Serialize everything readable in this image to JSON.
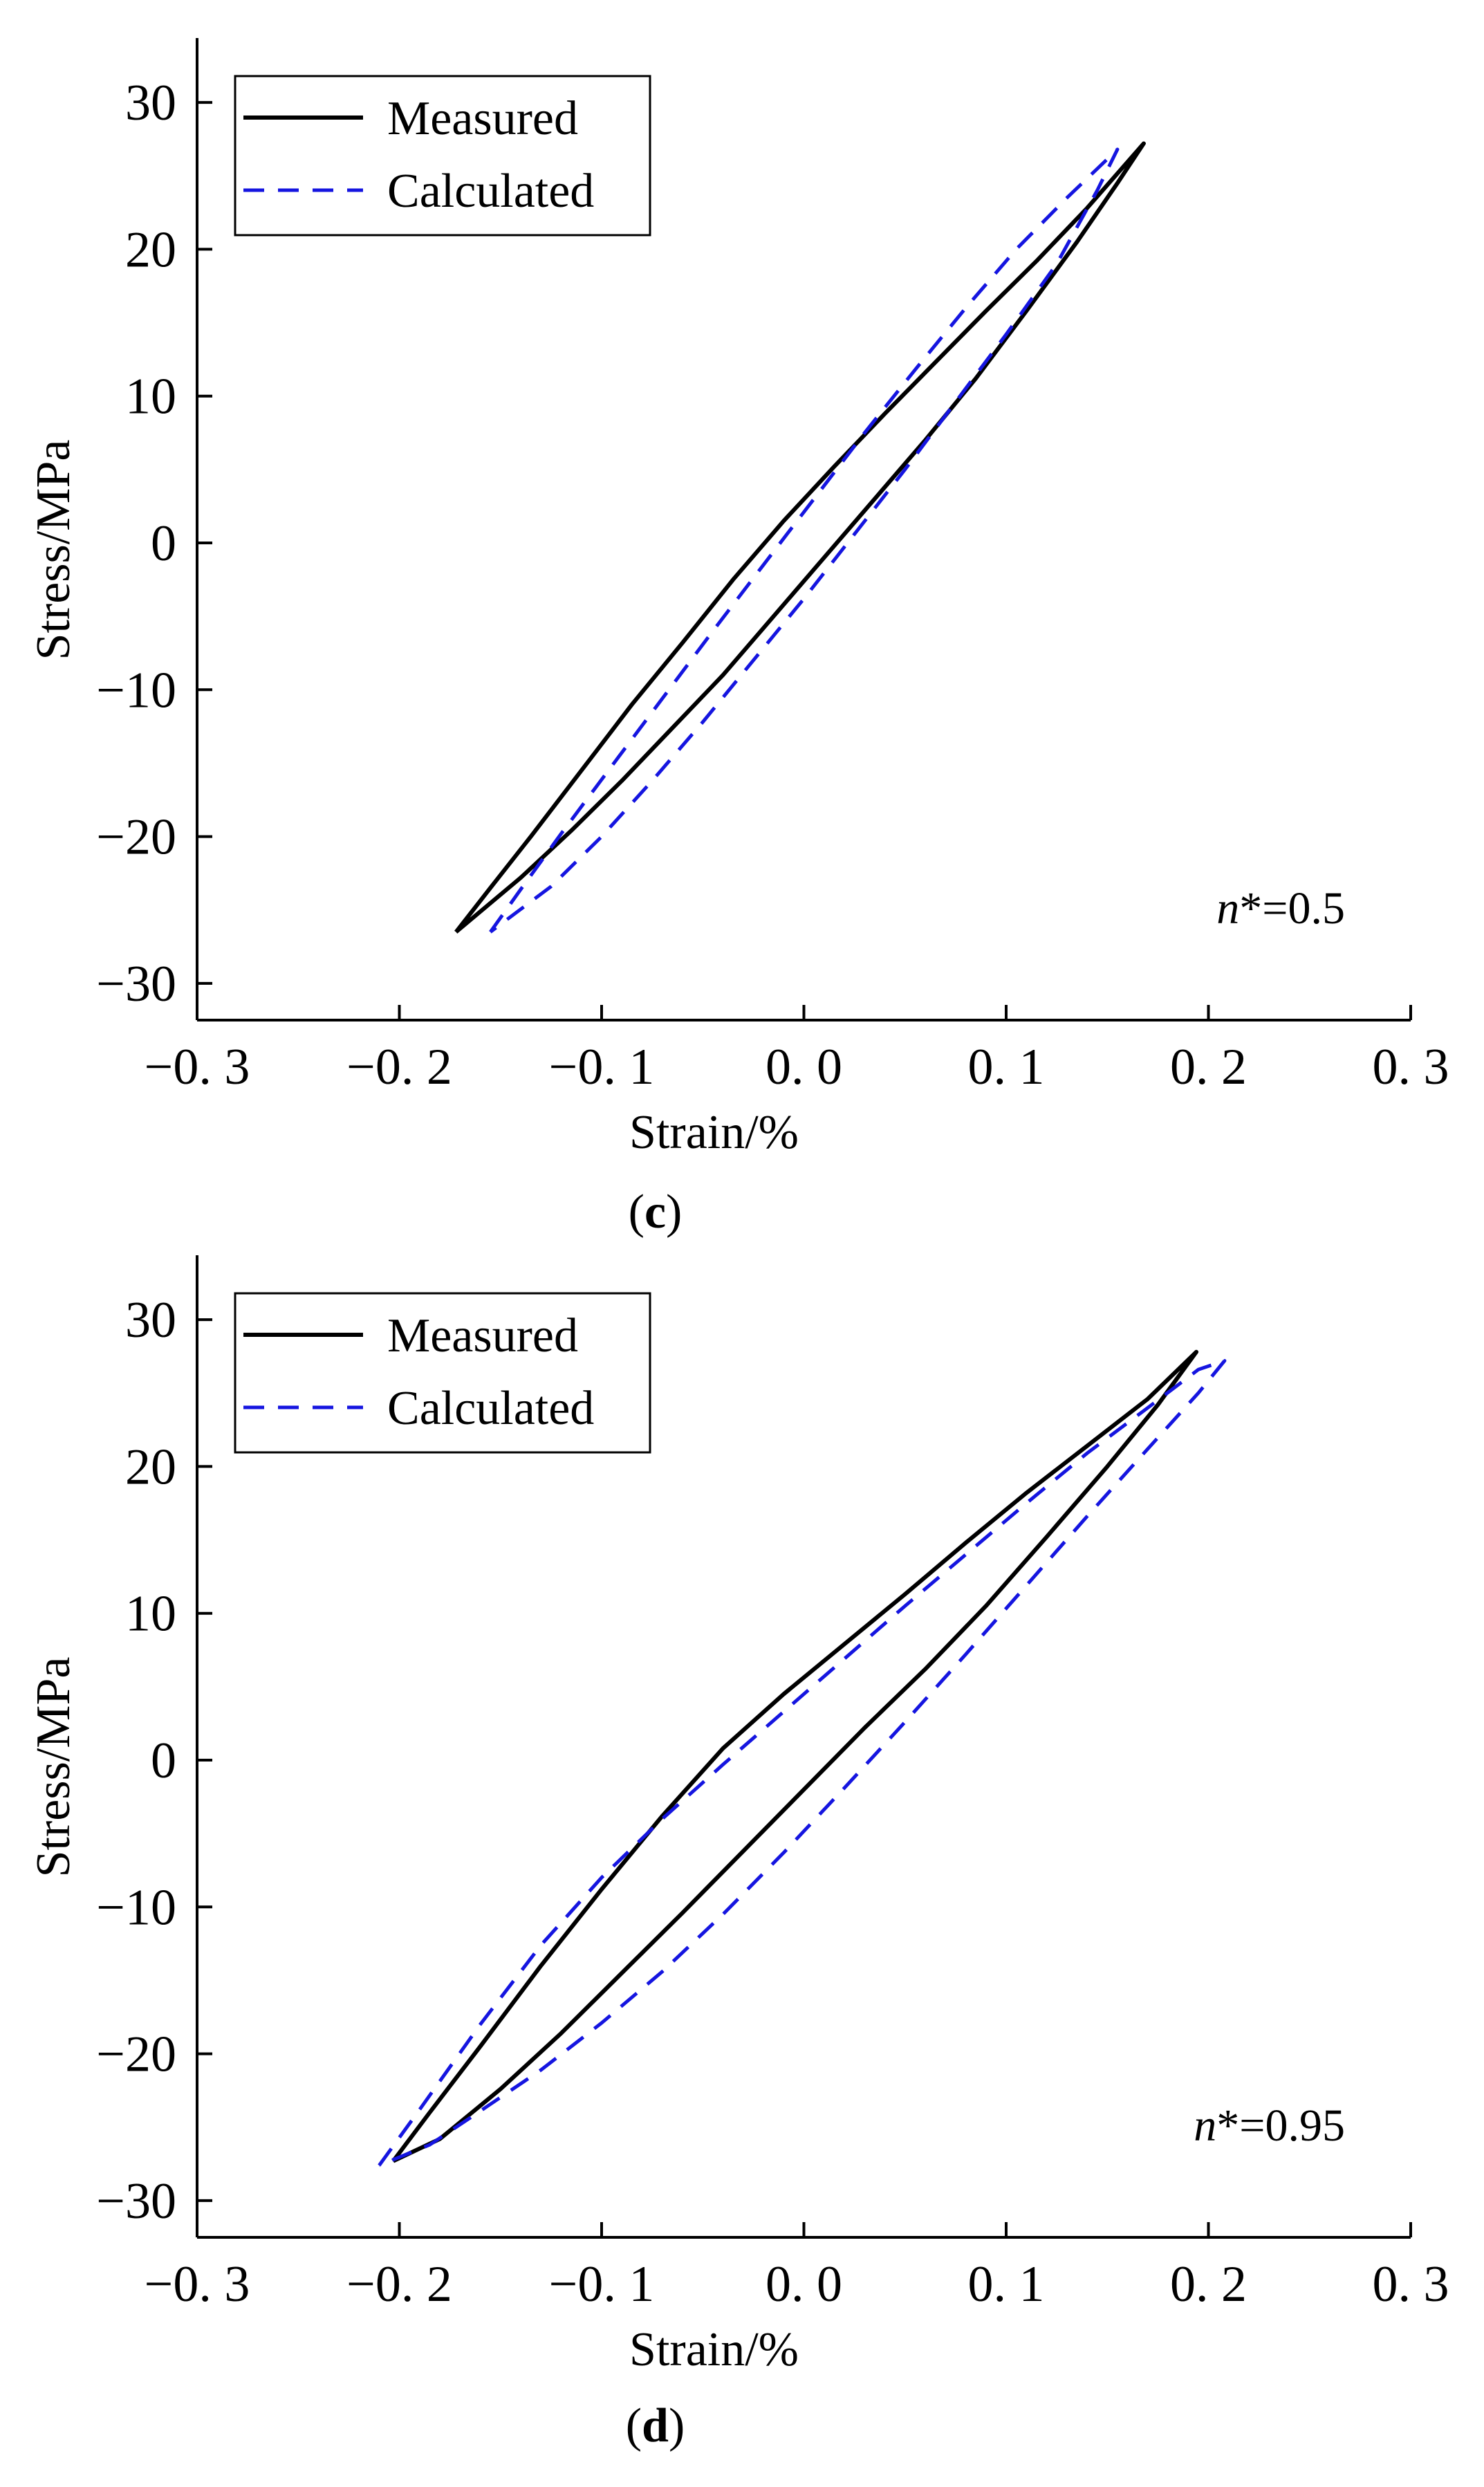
{
  "chart_data": [
    {
      "type": "line",
      "panel_label_open": "(",
      "panel_label_letter": "c",
      "panel_label_close": ")",
      "xlabel": "Strain/%",
      "ylabel": "Stress/MPa",
      "xlim": [
        -0.3,
        0.3
      ],
      "ylim": [
        -32.5,
        32.5
      ],
      "xticks": [
        -0.3,
        -0.2,
        -0.1,
        0.0,
        0.1,
        0.2,
        0.3
      ],
      "xtick_labels": [
        "−0. 3",
        "−0. 2",
        "−0. 1",
        "0. 0",
        "0. 1",
        "0. 2",
        "0. 3"
      ],
      "yticks": [
        30,
        20,
        10,
        0,
        -10,
        -20,
        -30
      ],
      "ytick_labels": [
        "30",
        "20",
        "10",
        "0",
        "−10",
        "−20",
        "−30"
      ],
      "legend": {
        "position": "top-left",
        "entries": [
          "Measured",
          "Calculated"
        ]
      },
      "annotation": {
        "symbol": "n",
        "rest": "*=0.5"
      },
      "series": [
        {
          "name": "Measured",
          "color": "#000000",
          "dash": "solid",
          "points": [
            [
              -0.172,
              -26.5
            ],
            [
              -0.155,
              -23.5
            ],
            [
              -0.135,
              -20.0
            ],
            [
              -0.11,
              -15.5
            ],
            [
              -0.085,
              -11.0
            ],
            [
              -0.06,
              -6.8
            ],
            [
              -0.035,
              -2.5
            ],
            [
              -0.01,
              1.5
            ],
            [
              0.015,
              5.2
            ],
            [
              0.04,
              8.8
            ],
            [
              0.065,
              12.3
            ],
            [
              0.09,
              15.8
            ],
            [
              0.115,
              19.2
            ],
            [
              0.14,
              22.8
            ],
            [
              0.168,
              27.2
            ],
            [
              0.155,
              24.5
            ],
            [
              0.135,
              20.5
            ],
            [
              0.11,
              15.8
            ],
            [
              0.085,
              11.2
            ],
            [
              0.06,
              7.0
            ],
            [
              0.035,
              3.0
            ],
            [
              0.01,
              -1.0
            ],
            [
              -0.015,
              -5.0
            ],
            [
              -0.04,
              -9.0
            ],
            [
              -0.065,
              -12.6
            ],
            [
              -0.09,
              -16.2
            ],
            [
              -0.115,
              -19.6
            ],
            [
              -0.14,
              -22.8
            ],
            [
              -0.172,
              -26.5
            ]
          ]
        },
        {
          "name": "Calculated",
          "color": "#1515e0",
          "dash": "dashed",
          "points": [
            [
              -0.155,
              -26.5
            ],
            [
              -0.14,
              -23.6
            ],
            [
              -0.12,
              -19.8
            ],
            [
              -0.095,
              -15.2
            ],
            [
              -0.07,
              -10.6
            ],
            [
              -0.045,
              -6.0
            ],
            [
              -0.02,
              -1.5
            ],
            [
              0.005,
              3.0
            ],
            [
              0.03,
              7.5
            ],
            [
              0.055,
              11.8
            ],
            [
              0.08,
              16.0
            ],
            [
              0.105,
              20.0
            ],
            [
              0.13,
              23.5
            ],
            [
              0.155,
              26.8
            ],
            [
              0.145,
              24.0
            ],
            [
              0.125,
              19.0
            ],
            [
              0.1,
              14.2
            ],
            [
              0.075,
              9.6
            ],
            [
              0.05,
              5.0
            ],
            [
              0.025,
              0.6
            ],
            [
              0.0,
              -3.8
            ],
            [
              -0.025,
              -8.0
            ],
            [
              -0.05,
              -12.2
            ],
            [
              -0.075,
              -16.2
            ],
            [
              -0.1,
              -20.0
            ],
            [
              -0.125,
              -23.4
            ],
            [
              -0.155,
              -26.5
            ]
          ]
        }
      ]
    },
    {
      "type": "line",
      "panel_label_open": "(",
      "panel_label_letter": "d",
      "panel_label_close": ")",
      "xlabel": "Strain/%",
      "ylabel": "Stress/MPa",
      "xlim": [
        -0.3,
        0.3
      ],
      "ylim": [
        -32.5,
        32.5
      ],
      "xticks": [
        -0.3,
        -0.2,
        -0.1,
        0.0,
        0.1,
        0.2,
        0.3
      ],
      "xtick_labels": [
        "−0. 3",
        "−0. 2",
        "−0. 1",
        "0. 0",
        "0. 1",
        "0. 2",
        "0. 3"
      ],
      "yticks": [
        30,
        20,
        10,
        0,
        -10,
        -20,
        -30
      ],
      "ytick_labels": [
        "30",
        "20",
        "10",
        "0",
        "−10",
        "−20",
        "−30"
      ],
      "legend": {
        "position": "top-left",
        "entries": [
          "Measured",
          "Calculated"
        ]
      },
      "annotation": {
        "symbol": "n",
        "rest": "*=0.95"
      },
      "series": [
        {
          "name": "Measured",
          "color": "#000000",
          "dash": "solid",
          "points": [
            [
              -0.203,
              -27.3
            ],
            [
              -0.185,
              -24.0
            ],
            [
              -0.16,
              -19.5
            ],
            [
              -0.13,
              -14.0
            ],
            [
              -0.1,
              -8.8
            ],
            [
              -0.07,
              -3.8
            ],
            [
              -0.04,
              0.8
            ],
            [
              -0.01,
              4.5
            ],
            [
              0.02,
              7.9
            ],
            [
              0.05,
              11.3
            ],
            [
              0.08,
              14.8
            ],
            [
              0.11,
              18.2
            ],
            [
              0.14,
              21.4
            ],
            [
              0.17,
              24.6
            ],
            [
              0.194,
              27.8
            ],
            [
              0.175,
              24.2
            ],
            [
              0.15,
              20.0
            ],
            [
              0.12,
              15.2
            ],
            [
              0.09,
              10.5
            ],
            [
              0.06,
              6.2
            ],
            [
              0.03,
              2.2
            ],
            [
              0.0,
              -2.0
            ],
            [
              -0.03,
              -6.2
            ],
            [
              -0.06,
              -10.4
            ],
            [
              -0.09,
              -14.5
            ],
            [
              -0.12,
              -18.6
            ],
            [
              -0.15,
              -22.4
            ],
            [
              -0.18,
              -25.8
            ],
            [
              -0.203,
              -27.3
            ]
          ]
        },
        {
          "name": "Calculated",
          "color": "#1515e0",
          "dash": "dashed",
          "points": [
            [
              -0.21,
              -27.6
            ],
            [
              -0.19,
              -23.8
            ],
            [
              -0.16,
              -18.0
            ],
            [
              -0.13,
              -12.6
            ],
            [
              -0.1,
              -8.0
            ],
            [
              -0.07,
              -4.0
            ],
            [
              -0.04,
              -0.3
            ],
            [
              -0.01,
              3.3
            ],
            [
              0.02,
              6.9
            ],
            [
              0.05,
              10.5
            ],
            [
              0.08,
              14.0
            ],
            [
              0.11,
              17.5
            ],
            [
              0.14,
              20.9
            ],
            [
              0.17,
              24.0
            ],
            [
              0.195,
              26.6
            ],
            [
              0.208,
              27.2
            ],
            [
              0.195,
              25.0
            ],
            [
              0.17,
              21.2
            ],
            [
              0.14,
              16.6
            ],
            [
              0.11,
              11.9
            ],
            [
              0.08,
              7.2
            ],
            [
              0.05,
              2.6
            ],
            [
              0.02,
              -1.9
            ],
            [
              -0.01,
              -6.3
            ],
            [
              -0.04,
              -10.5
            ],
            [
              -0.07,
              -14.4
            ],
            [
              -0.1,
              -17.9
            ],
            [
              -0.13,
              -21.1
            ],
            [
              -0.16,
              -23.9
            ],
            [
              -0.185,
              -26.2
            ],
            [
              -0.21,
              -27.6
            ]
          ]
        }
      ]
    }
  ]
}
